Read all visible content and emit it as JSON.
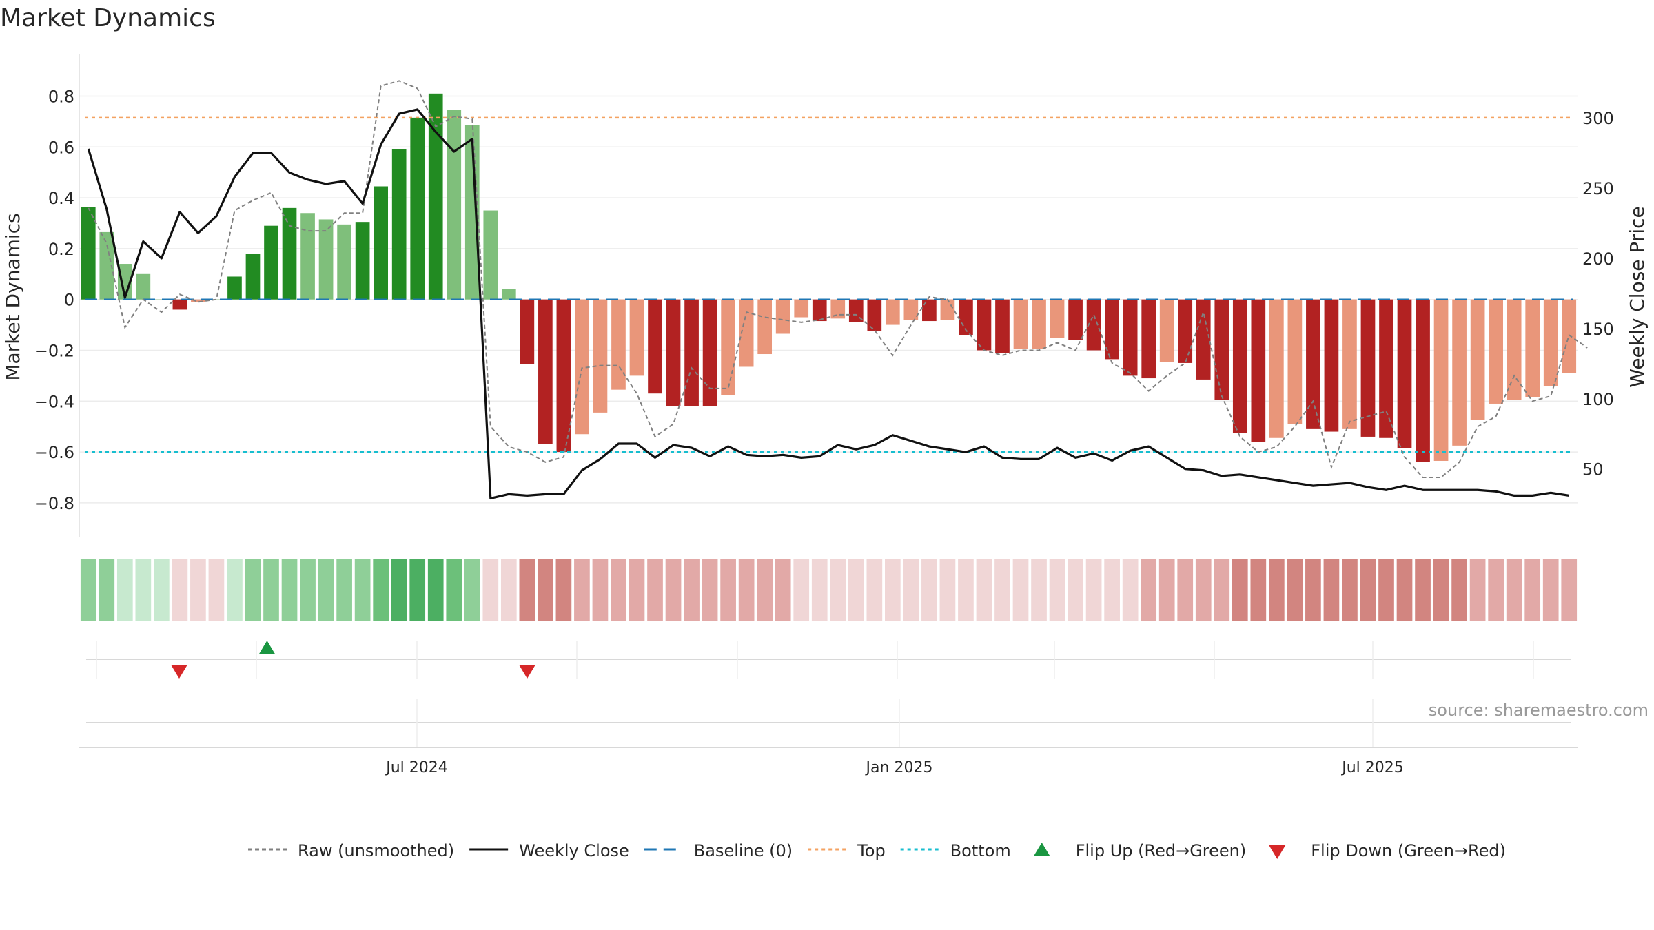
{
  "title": "Market Dynamics",
  "source": "source: sharemaestro.com",
  "colors": {
    "strong_green": "#228b22",
    "light_green": "#7fbf7b",
    "strong_red": "#b22222",
    "light_red": "#e9967a",
    "raw": "#808080",
    "close": "#111111",
    "baseline": "#1f77b4",
    "top": "#f4a261",
    "bottom": "#17becf",
    "flip_up": "#1a9641",
    "flip_down": "#d62728"
  },
  "chart_data": {
    "type": "bar",
    "frequency": "weekly",
    "date_range": [
      "2024-01-14",
      "2025-10-26"
    ],
    "x_ticks": [
      "Jul 2024",
      "Jan 2025",
      "Jul 2025"
    ],
    "left_axis": {
      "label": "Market Dynamics",
      "ylim": [
        -0.86,
        0.88
      ],
      "ticks": [
        0.8,
        0.6,
        0.4,
        0.2,
        0,
        -0.2,
        -0.4,
        -0.6,
        -0.8
      ],
      "tick_labels": [
        "0.8",
        "0.6",
        "0.4",
        "0.2",
        "0",
        "−0.2",
        "−0.4",
        "−0.6",
        "−0.8"
      ]
    },
    "right_axis": {
      "label": "Weekly Close Price",
      "ylim": [
        15,
        330
      ],
      "ticks": [
        300,
        250,
        200,
        150,
        100,
        50
      ],
      "tick_labels": [
        "300",
        "250",
        "200",
        "150",
        "100",
        "50"
      ]
    },
    "top_line": 0.715,
    "bottom_line": -0.6,
    "baseline": 0,
    "series": [
      {
        "name": "Market Dynamics",
        "kind": "bar",
        "values": [
          0.365,
          0.265,
          0.14,
          0.1,
          0,
          -0.04,
          -0.01,
          0,
          0.09,
          0.18,
          0.29,
          0.36,
          0.34,
          0.315,
          0.295,
          0.305,
          0.445,
          0.59,
          0.715,
          0.81,
          0.745,
          0.685,
          0.35,
          0.04,
          -0.255,
          -0.57,
          -0.6,
          -0.53,
          -0.445,
          -0.355,
          -0.3,
          -0.37,
          -0.42,
          -0.42,
          -0.42,
          -0.375,
          -0.265,
          -0.215,
          -0.135,
          -0.07,
          -0.085,
          -0.075,
          -0.09,
          -0.125,
          -0.1,
          -0.08,
          -0.085,
          -0.08,
          -0.14,
          -0.2,
          -0.21,
          -0.195,
          -0.195,
          -0.15,
          -0.16,
          -0.2,
          -0.235,
          -0.3,
          -0.31,
          -0.245,
          -0.25,
          -0.315,
          -0.395,
          -0.525,
          -0.56,
          -0.545,
          -0.49,
          -0.51,
          -0.52,
          -0.51,
          -0.54,
          -0.545,
          -0.585,
          -0.64,
          -0.635,
          -0.575,
          -0.475,
          -0.41,
          -0.395,
          -0.385,
          -0.34,
          -0.29
        ],
        "strength": [
          1,
          0,
          0,
          0,
          0,
          1,
          0,
          0,
          1,
          1,
          1,
          1,
          0,
          0,
          0,
          1,
          1,
          1,
          1,
          1,
          0,
          0,
          0,
          0,
          1,
          1,
          1,
          0,
          0,
          0,
          0,
          1,
          1,
          1,
          1,
          0,
          0,
          0,
          0,
          0,
          1,
          0,
          1,
          1,
          0,
          0,
          1,
          0,
          1,
          1,
          1,
          0,
          0,
          0,
          1,
          1,
          1,
          1,
          1,
          0,
          1,
          1,
          1,
          1,
          1,
          0,
          0,
          1,
          1,
          0,
          1,
          1,
          1,
          1,
          0,
          0,
          0,
          0,
          0,
          0,
          0,
          0
        ]
      },
      {
        "name": "Raw (unsmoothed)",
        "kind": "line",
        "values": [
          0.36,
          0.22,
          -0.11,
          0,
          -0.05,
          0.02,
          -0.01,
          0,
          0.35,
          0.39,
          0.42,
          0.29,
          0.27,
          0.27,
          0.34,
          0.34,
          0.84,
          0.86,
          0.83,
          0.68,
          0.72,
          0.71,
          -0.5,
          -0.58,
          -0.6,
          -0.64,
          -0.62,
          -0.27,
          -0.26,
          -0.26,
          -0.37,
          -0.54,
          -0.49,
          -0.27,
          -0.35,
          -0.35,
          -0.05,
          -0.07,
          -0.08,
          -0.09,
          -0.08,
          -0.06,
          -0.06,
          -0.12,
          -0.22,
          -0.1,
          0.01,
          0,
          -0.12,
          -0.2,
          -0.22,
          -0.2,
          -0.2,
          -0.17,
          -0.2,
          -0.06,
          -0.25,
          -0.29,
          -0.36,
          -0.3,
          -0.25,
          -0.05,
          -0.38,
          -0.54,
          -0.6,
          -0.58,
          -0.5,
          -0.4,
          -0.66,
          -0.48,
          -0.46,
          -0.44,
          -0.62,
          -0.7,
          -0.7,
          -0.64,
          -0.5,
          -0.46,
          -0.3,
          -0.4,
          -0.38,
          -0.14,
          -0.19
        ]
      },
      {
        "name": "Weekly Close",
        "kind": "line",
        "axis": "right",
        "values": [
          278,
          235,
          172,
          212,
          200,
          233,
          218,
          230,
          258,
          275,
          275,
          261,
          256,
          253,
          255,
          239,
          281,
          303,
          306,
          290,
          276,
          285,
          29,
          32,
          31,
          32,
          32,
          49,
          57,
          68,
          68,
          58,
          67,
          65,
          59,
          66,
          60,
          59,
          60,
          58,
          59,
          67,
          64,
          67,
          74,
          70,
          66,
          64,
          62,
          66,
          58,
          57,
          57,
          65,
          58,
          61,
          56,
          63,
          66,
          58,
          50,
          49,
          45,
          46,
          44,
          42,
          40,
          38,
          39,
          40,
          37,
          35,
          38,
          35,
          35,
          35,
          35,
          34,
          31,
          31,
          33,
          31
        ]
      }
    ],
    "regime_strip": [
      "+1",
      "+1",
      "+2",
      "+2",
      "+2",
      "-1",
      "-1",
      "-1",
      "+2",
      "+1",
      "+1",
      "+1",
      "+1",
      "+1",
      "+1",
      "+1",
      "+0.5",
      "+0.3",
      "+0.3",
      "+0.3",
      "+0.5",
      "+1",
      "-1",
      "-1",
      "-0.3",
      "-0.3",
      "-0.3",
      "-0.5",
      "-0.5",
      "-0.5",
      "-0.5",
      "-0.5",
      "-0.5",
      "-0.5",
      "-0.5",
      "-0.5",
      "-0.5",
      "-0.5",
      "-0.5",
      "-1",
      "-1",
      "-1",
      "-1",
      "-1",
      "-1",
      "-1",
      "-1",
      "-1",
      "-1",
      "-1",
      "-1",
      "-1",
      "-1",
      "-1",
      "-1",
      "-1",
      "-1",
      "-1",
      "-0.5",
      "-0.5",
      "-0.5",
      "-0.5",
      "-0.5",
      "-0.3",
      "-0.3",
      "-0.3",
      "-0.3",
      "-0.3",
      "-0.3",
      "-0.3",
      "-0.3",
      "-0.3",
      "-0.3",
      "-0.3",
      "-0.3",
      "-0.3",
      "-0.5",
      "-0.5",
      "-0.5",
      "-0.5",
      "-0.5",
      "-0.5"
    ],
    "flip_up_index": [
      8
    ],
    "flip_down_index": [
      5,
      24
    ],
    "legend": [
      {
        "label": "Raw (unsmoothed)",
        "style": "dashed",
        "color": "#808080"
      },
      {
        "label": "Weekly Close",
        "style": "solid",
        "color": "#111111"
      },
      {
        "label": "Baseline (0)",
        "style": "dashed",
        "color": "#1f77b4"
      },
      {
        "label": "Top",
        "style": "dotted",
        "color": "#f4a261"
      },
      {
        "label": "Bottom",
        "style": "dotted",
        "color": "#17becf"
      },
      {
        "label": "Flip Up (Red→Green)",
        "style": "triangle-up",
        "color": "#1a9641"
      },
      {
        "label": "Flip Down (Green→Red)",
        "style": "triangle-down",
        "color": "#d62728"
      }
    ],
    "legend_position": "bottom-center",
    "grid": true
  }
}
